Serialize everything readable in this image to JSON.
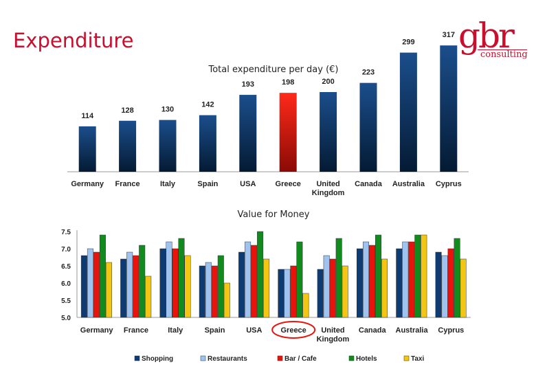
{
  "header": {
    "title": "Expenditure",
    "logo_main": "gbr",
    "logo_sub": "consulting"
  },
  "chart_data": [
    {
      "type": "bar",
      "title": "Total expenditure per day (€)",
      "categories": [
        "Germany",
        "France",
        "Italy",
        "Spain",
        "USA",
        "Greece",
        "United Kingdom",
        "Canada",
        "Australia",
        "Cyprus"
      ],
      "values": [
        114,
        128,
        130,
        142,
        193,
        198,
        200,
        223,
        299,
        317
      ],
      "highlight": "Greece",
      "ylim": [
        0,
        320
      ],
      "grid": false,
      "colors": {
        "bar": "#0d3b72",
        "highlight": "#e8140c"
      }
    },
    {
      "type": "bar",
      "title": "Value for Money",
      "categories": [
        "Germany",
        "France",
        "Italy",
        "Spain",
        "USA",
        "Greece",
        "United Kingdom",
        "Canada",
        "Australia",
        "Cyprus"
      ],
      "ylim": [
        5.0,
        7.5
      ],
      "yticks": [
        "5.0",
        "5.5",
        "6.0",
        "6.5",
        "7.0",
        "7.5"
      ],
      "grid": false,
      "highlight_category": "Greece",
      "legend_position": "bottom",
      "series": [
        {
          "name": "Shopping",
          "color": "#0d3b72",
          "values": [
            6.8,
            6.7,
            7.0,
            6.5,
            6.9,
            6.4,
            6.4,
            7.0,
            7.0,
            6.9
          ]
        },
        {
          "name": "Restaurants",
          "color": "#9ec3ee",
          "values": [
            7.0,
            6.9,
            7.2,
            6.6,
            7.2,
            6.4,
            6.8,
            7.2,
            7.2,
            6.8
          ]
        },
        {
          "name": "Bar / Cafe",
          "color": "#e8140c",
          "values": [
            6.9,
            6.8,
            7.0,
            6.5,
            7.1,
            6.5,
            6.7,
            7.1,
            7.2,
            7.0
          ]
        },
        {
          "name": "Hotels",
          "color": "#118a1e",
          "values": [
            7.4,
            7.1,
            7.3,
            6.8,
            7.5,
            7.2,
            7.3,
            7.4,
            7.4,
            7.3
          ]
        },
        {
          "name": "Taxi",
          "color": "#f2c612",
          "values": [
            6.6,
            6.2,
            6.8,
            6.0,
            6.7,
            5.7,
            6.5,
            6.7,
            7.4,
            6.7
          ]
        }
      ]
    }
  ]
}
